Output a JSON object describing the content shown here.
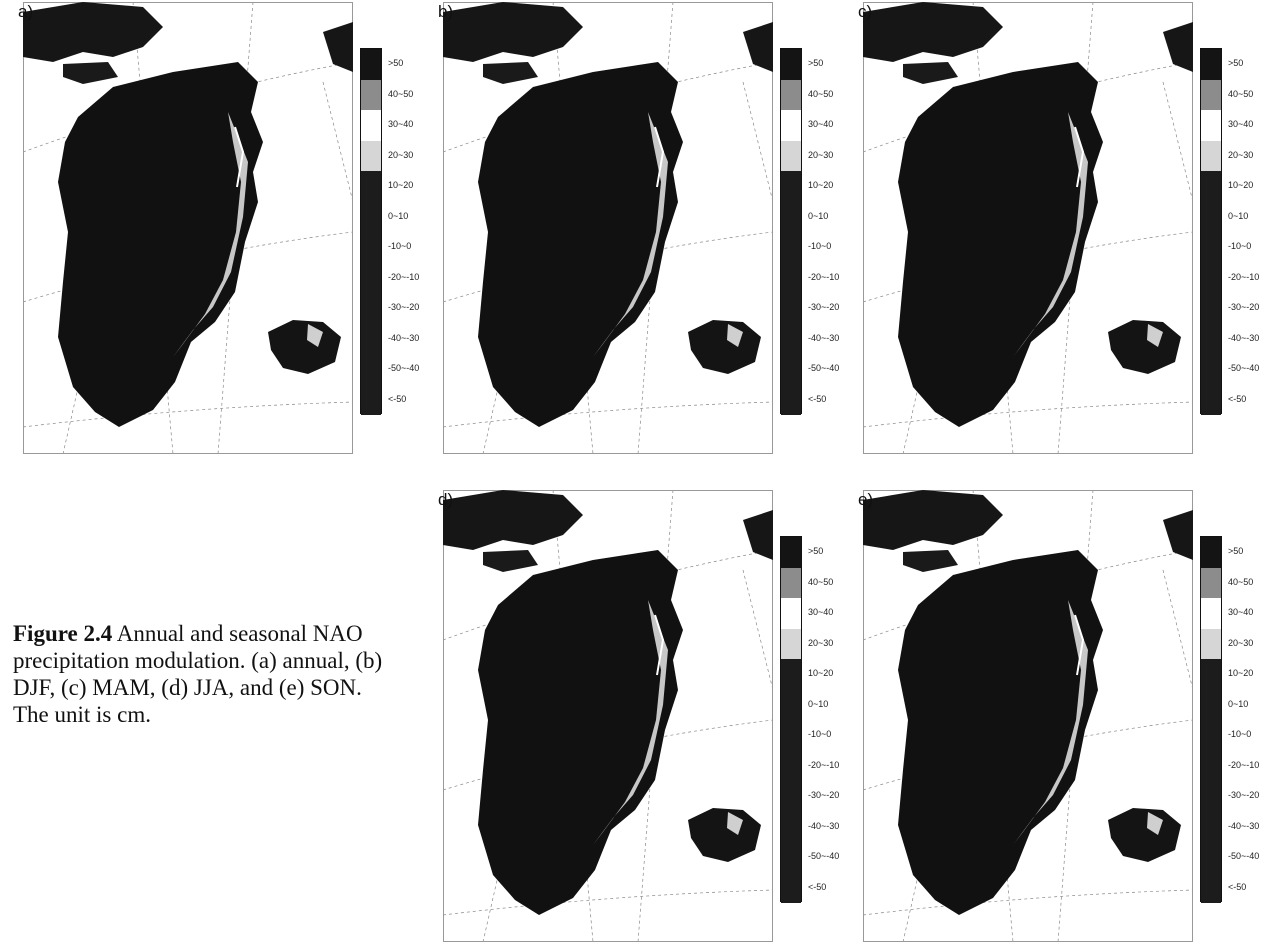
{
  "colorbar": {
    "labels": [
      ">50",
      "40~50",
      "30~40",
      "20~30",
      "10~20",
      "0~10",
      "-10~0",
      "-20~-10",
      "-30~-20",
      "-40~-30",
      "-50~-40",
      "<-50"
    ],
    "colors": [
      "#141414",
      "#8c8c8c",
      "#ffffff",
      "#d6d6d6",
      "#1c1c1c",
      "#1c1c1c",
      "#1c1c1c",
      "#1c1c1c",
      "#1c1c1c",
      "#1c1c1c",
      "#1c1c1c",
      "#1c1c1c"
    ]
  },
  "panels": [
    {
      "letter": "a)"
    },
    {
      "letter": "b)"
    },
    {
      "letter": "c)"
    },
    {
      "letter": "d)"
    },
    {
      "letter": "e)"
    }
  ],
  "caption": {
    "figure_label": "Figure 2.4",
    "text": " Annual and seasonal NAO precipitation modulation. (a) annual, (b) DJF, (c) MAM, (d) JJA, and (e) SON. The unit is cm."
  }
}
